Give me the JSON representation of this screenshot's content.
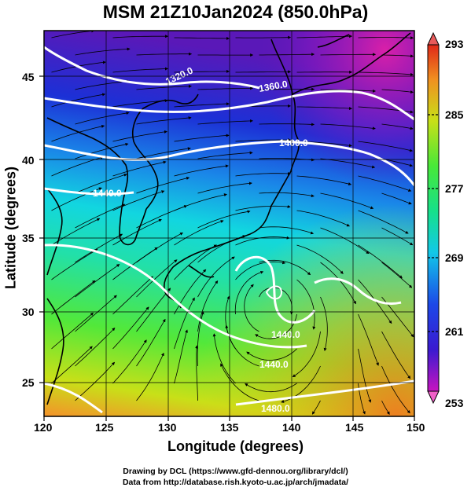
{
  "title": "MSM 21Z10Jan2024 (850.0hPa)",
  "axes": {
    "xlabel": "Longitude (degrees)",
    "ylabel": "Latitude  (degrees)",
    "xticks": [
      "120",
      "125",
      "130",
      "135",
      "140",
      "145",
      "150"
    ],
    "yticks": [
      "25",
      "30",
      "35",
      "40",
      "45"
    ],
    "xlim": [
      120,
      150
    ],
    "ylim": [
      22.4,
      47.6
    ]
  },
  "contours": {
    "variable": "geopotential height",
    "labels": [
      "1320.0",
      "1360.0",
      "1400.0",
      "1440.0",
      "1440.0",
      "1440.0",
      "1480.0"
    ]
  },
  "colorbar": {
    "ticks": [
      "293",
      "285",
      "277",
      "269",
      "261",
      "253"
    ],
    "min": 253,
    "max": 293
  },
  "credits": {
    "line1": "Drawing by DCL (https://www.gfd-dennou.org/library/dcl/)",
    "line2": "Data from http://database.rish.kyoto-u.ac.jp/arch/jmadata/"
  }
}
